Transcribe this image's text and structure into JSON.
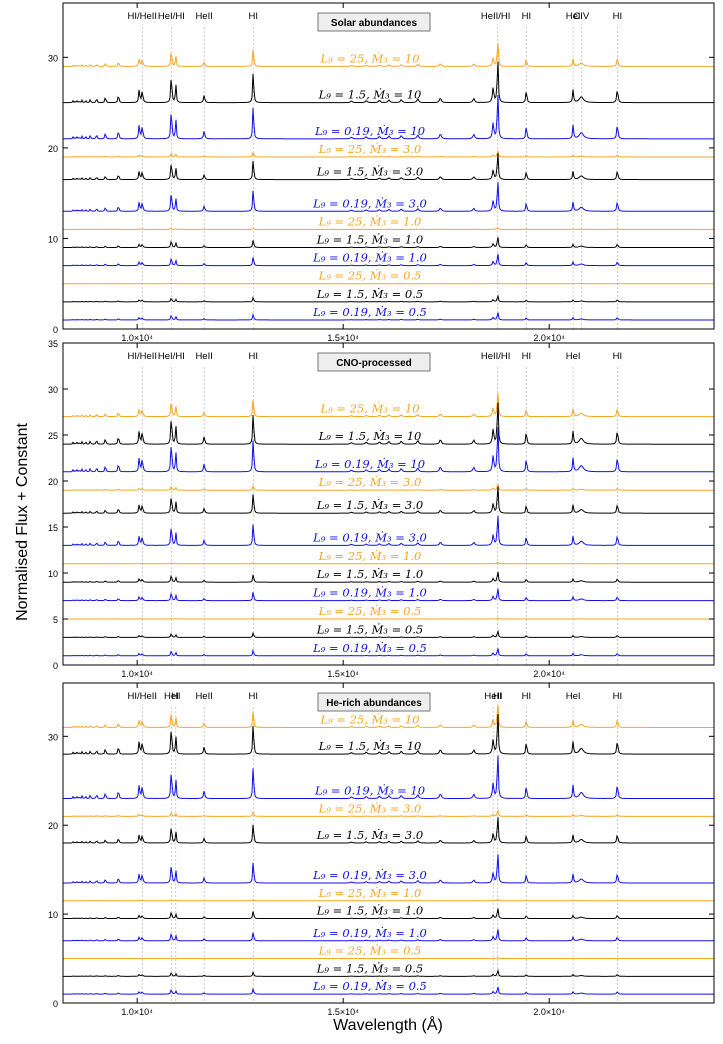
{
  "figure": {
    "ylabel": "Normalised Flux + Constant",
    "xlabel": "Wavelength (Å)"
  },
  "colors": {
    "L9_25": "#f5a623",
    "L9_1.5": "#000000",
    "L9_0.19": "#1010e0",
    "guide": "#b0b0b0"
  },
  "chart_data": [
    {
      "type": "line",
      "panel": "top",
      "box_label": "Solar abundances",
      "xlim": [
        8200,
        24000
      ],
      "ylim": [
        0,
        36
      ],
      "x_ticks": [
        10000,
        15000,
        20000
      ],
      "x_tick_labels": [
        "1.0×10⁴",
        "1.5×10⁴",
        "2.0×10⁴"
      ],
      "y_ticks": [
        0,
        10,
        20,
        30
      ],
      "species_labels": [
        {
          "text": "HI/HeII",
          "x": 10124
        },
        {
          "text": "HeI/HI",
          "x": 10830
        },
        {
          "text": "HeII",
          "x": 11626
        },
        {
          "text": "HI",
          "x": 12818
        },
        {
          "text": "HeII/HI",
          "x": 18700
        },
        {
          "text": "HI",
          "x": 19446
        },
        {
          "text": "HeI",
          "x": 20581
        },
        {
          "text": "CIV",
          "x": 20780
        },
        {
          "text": "HI",
          "x": 21655
        }
      ],
      "series": [
        {
          "label": "L₉ = 25, Ṁ₃ = 10",
          "L9": "25",
          "offset": 29,
          "strength": 0.8
        },
        {
          "label": "L₉ = 1.5, Ṁ₃ = 10",
          "L9": "1.5",
          "offset": 25,
          "strength": 1.4
        },
        {
          "label": "L₉ = 0.19, Ṁ₃ = 10",
          "L9": "0.19",
          "offset": 21,
          "strength": 1.5
        },
        {
          "label": "L₉ = 25, Ṁ₃ = 3.0",
          "L9": "25",
          "offset": 19,
          "strength": 0.2
        },
        {
          "label": "L₉ = 1.5, Ṁ₃ = 3.0",
          "L9": "1.5",
          "offset": 16.5,
          "strength": 0.9
        },
        {
          "label": "L₉ = 0.19, Ṁ₃ = 3.0",
          "L9": "0.19",
          "offset": 13,
          "strength": 1.0
        },
        {
          "label": "L₉ = 25, Ṁ₃ = 1.0",
          "L9": "25",
          "offset": 11,
          "strength": 0.05
        },
        {
          "label": "L₉ = 1.5, Ṁ₃ = 1.0",
          "L9": "1.5",
          "offset": 9,
          "strength": 0.35
        },
        {
          "label": "L₉ = 0.19, Ṁ₃ = 1.0",
          "L9": "0.19",
          "offset": 7,
          "strength": 0.4
        },
        {
          "label": "L₉ = 25, Ṁ₃ = 0.5",
          "L9": "25",
          "offset": 5,
          "strength": 0.03
        },
        {
          "label": "L₉ = 1.5, Ṁ₃ = 0.5",
          "L9": "1.5",
          "offset": 3,
          "strength": 0.2
        },
        {
          "label": "L₉ = 0.19, Ṁ₃ = 0.5",
          "L9": "0.19",
          "offset": 1,
          "strength": 0.25
        }
      ]
    },
    {
      "type": "line",
      "panel": "middle",
      "box_label": "CNO-processed",
      "xlim": [
        8200,
        24000
      ],
      "ylim": [
        0,
        35
      ],
      "x_ticks": [
        10000,
        15000,
        20000
      ],
      "x_tick_labels": [
        "1.0×10⁴",
        "1.5×10⁴",
        "2.0×10⁴"
      ],
      "y_ticks": [
        0,
        5,
        10,
        15,
        20,
        25,
        30,
        35
      ],
      "species_labels": [
        {
          "text": "HI/HeII",
          "x": 10124
        },
        {
          "text": "HeI/HI",
          "x": 10830
        },
        {
          "text": "HeII",
          "x": 11626
        },
        {
          "text": "HI",
          "x": 12818
        },
        {
          "text": "HeII/HI",
          "x": 18700
        },
        {
          "text": "HI",
          "x": 19446
        },
        {
          "text": "HeI",
          "x": 20581
        },
        {
          "text": "HI",
          "x": 21655
        }
      ],
      "series": [
        {
          "label": "L₉ = 25, Ṁ₃ = 10",
          "L9": "25",
          "offset": 27,
          "strength": 0.8
        },
        {
          "label": "L₉ = 1.5, Ṁ₃ = 10",
          "L9": "1.5",
          "offset": 24,
          "strength": 1.4
        },
        {
          "label": "L₉ = 0.19, Ṁ₃ = 10",
          "L9": "0.19",
          "offset": 21,
          "strength": 1.5
        },
        {
          "label": "L₉ = 25, Ṁ₃ = 3.0",
          "L9": "25",
          "offset": 19,
          "strength": 0.2
        },
        {
          "label": "L₉ = 1.5, Ṁ₃ = 3.0",
          "L9": "1.5",
          "offset": 16.5,
          "strength": 0.9
        },
        {
          "label": "L₉ = 0.19, Ṁ₃ = 3.0",
          "L9": "0.19",
          "offset": 13,
          "strength": 1.0
        },
        {
          "label": "L₉ = 25, Ṁ₃ = 1.0",
          "L9": "25",
          "offset": 11,
          "strength": 0.05
        },
        {
          "label": "L₉ = 1.5, Ṁ₃ = 1.0",
          "L9": "1.5",
          "offset": 9,
          "strength": 0.35
        },
        {
          "label": "L₉ = 0.19, Ṁ₃ = 1.0",
          "L9": "0.19",
          "offset": 7,
          "strength": 0.4
        },
        {
          "label": "L₉ = 25, Ṁ₃ = 0.5",
          "L9": "25",
          "offset": 5,
          "strength": 0.03
        },
        {
          "label": "L₉ = 1.5, Ṁ₃ = 0.5",
          "L9": "1.5",
          "offset": 3,
          "strength": 0.2
        },
        {
          "label": "L₉ = 0.19, Ṁ₃ = 0.5",
          "L9": "0.19",
          "offset": 1,
          "strength": 0.25
        }
      ]
    },
    {
      "type": "line",
      "panel": "bottom",
      "box_label": "He-rich abundances",
      "xlim": [
        8200,
        24000
      ],
      "ylim": [
        0,
        36
      ],
      "x_ticks": [
        10000,
        15000,
        20000
      ],
      "x_tick_labels": [
        "1.0×10⁴",
        "1.5×10⁴",
        "2.0×10⁴"
      ],
      "y_ticks": [
        0,
        10,
        20,
        30
      ],
      "species_labels": [
        {
          "text": "HI/HeII",
          "x": 10124
        },
        {
          "text": "HeI",
          "x": 10830
        },
        {
          "text": "HI",
          "x": 10938
        },
        {
          "text": "HeII",
          "x": 11626
        },
        {
          "text": "HI",
          "x": 12818
        },
        {
          "text": "HeII",
          "x": 18640
        },
        {
          "text": "HI",
          "x": 18751
        },
        {
          "text": "HI",
          "x": 19446
        },
        {
          "text": "HeI",
          "x": 20581
        },
        {
          "text": "HI",
          "x": 21655
        }
      ],
      "series": [
        {
          "label": "L₉ = 25, Ṁ₃ = 10",
          "L9": "25",
          "offset": 31,
          "strength": 0.8
        },
        {
          "label": "L₉ = 1.5, Ṁ₃ = 10",
          "L9": "1.5",
          "offset": 28,
          "strength": 1.4
        },
        {
          "label": "L₉ = 0.19, Ṁ₃ = 10",
          "L9": "0.19",
          "offset": 23,
          "strength": 1.5
        },
        {
          "label": "L₉ = 25, Ṁ₃ = 3.0",
          "L9": "25",
          "offset": 21,
          "strength": 0.2
        },
        {
          "label": "L₉ = 1.5, Ṁ₃ = 3.0",
          "L9": "1.5",
          "offset": 18,
          "strength": 0.9
        },
        {
          "label": "L₉ = 0.19, Ṁ₃ = 3.0",
          "L9": "0.19",
          "offset": 13.5,
          "strength": 1.0
        },
        {
          "label": "L₉ = 25, Ṁ₃ = 1.0",
          "L9": "25",
          "offset": 11.5,
          "strength": 0.05
        },
        {
          "label": "L₉ = 1.5, Ṁ₃ = 1.0",
          "L9": "1.5",
          "offset": 9.5,
          "strength": 0.35
        },
        {
          "label": "L₉ = 0.19, Ṁ₃ = 1.0",
          "L9": "0.19",
          "offset": 7,
          "strength": 0.4
        },
        {
          "label": "L₉ = 25, Ṁ₃ = 0.5",
          "L9": "25",
          "offset": 5,
          "strength": 0.03
        },
        {
          "label": "L₉ = 1.5, Ṁ₃ = 0.5",
          "L9": "1.5",
          "offset": 3,
          "strength": 0.2
        },
        {
          "label": "L₉ = 0.19, Ṁ₃ = 0.5",
          "L9": "0.19",
          "offset": 1,
          "strength": 0.25
        }
      ]
    }
  ]
}
